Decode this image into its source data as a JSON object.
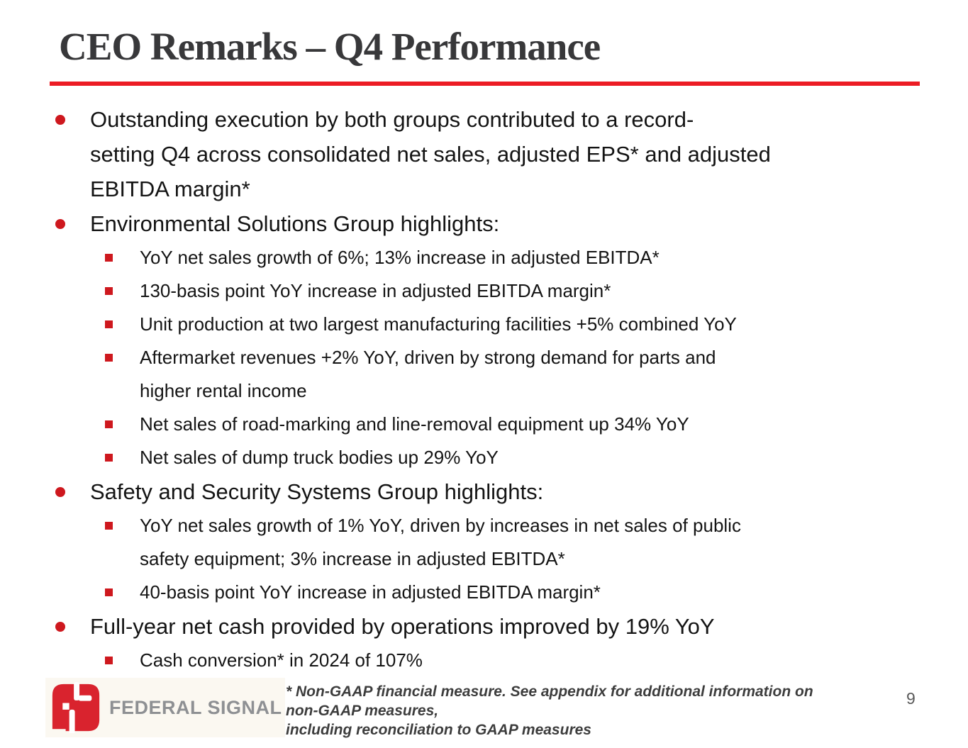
{
  "slide": {
    "title": "CEO Remarks – Q4 Performance",
    "page_number": "9",
    "accent_color": "#ec1c24",
    "bullet_color": "#ce181e"
  },
  "bullets": [
    {
      "level": 1,
      "text": "Outstanding execution by both groups contributed to a record-\nsetting Q4 across consolidated net sales, adjusted EPS* and adjusted\nEBITDA margin*"
    },
    {
      "level": 1,
      "text": "Environmental Solutions Group highlights:"
    },
    {
      "level": 2,
      "text": "YoY net sales growth of 6%; 13% increase in adjusted EBITDA*"
    },
    {
      "level": 2,
      "text": "130-basis point YoY increase in adjusted EBITDA margin*"
    },
    {
      "level": 2,
      "text": "Unit production at two largest manufacturing facilities +5% combined YoY"
    },
    {
      "level": 2,
      "text": "Aftermarket revenues +2% YoY, driven by strong demand for parts and\nhigher rental income"
    },
    {
      "level": 2,
      "text": "Net sales of road-marking and line-removal equipment up 34% YoY"
    },
    {
      "level": 2,
      "text": "Net sales of dump truck bodies up 29% YoY"
    },
    {
      "level": 1,
      "text": "Safety and Security Systems Group highlights:"
    },
    {
      "level": 2,
      "text": "YoY net sales growth of 1% YoY, driven by increases in net sales of public\nsafety equipment; 3% increase in adjusted EBITDA*"
    },
    {
      "level": 2,
      "text": "40-basis point YoY increase in adjusted EBITDA margin*"
    },
    {
      "level": 1,
      "text": "Full-year net cash provided by operations improved by 19% YoY"
    },
    {
      "level": 2,
      "text": "Cash conversion* in 2024 of 107%"
    }
  ],
  "footer": {
    "logo_text": "FEDERAL SIGNAL",
    "footnote": "* Non-GAAP financial measure. See appendix for additional information on non-GAAP measures,\nincluding reconciliation to GAAP measures"
  }
}
